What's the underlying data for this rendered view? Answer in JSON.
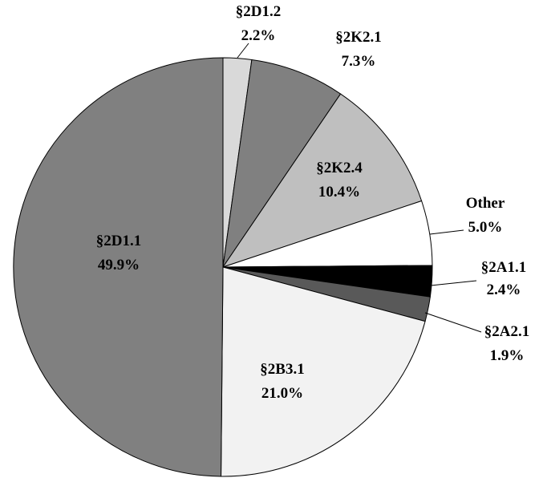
{
  "chart_data": {
    "type": "pie",
    "title": "",
    "slices": [
      {
        "name": "§2D1.2",
        "value": 2.2,
        "label": "2.2%",
        "color": "#d9d9d9"
      },
      {
        "name": "§2K2.1",
        "value": 7.3,
        "label": "7.3%",
        "color": "#808080"
      },
      {
        "name": "§2K2.4",
        "value": 10.4,
        "label": "10.4%",
        "color": "#bfbfbf"
      },
      {
        "name": "Other",
        "value": 5.0,
        "label": "5.0%",
        "color": "#ffffff"
      },
      {
        "name": "§2A1.1",
        "value": 2.4,
        "label": "2.4%",
        "color": "#000000"
      },
      {
        "name": "§2A2.1",
        "value": 1.9,
        "label": "1.9%",
        "color": "#595959"
      },
      {
        "name": "§2B3.1",
        "value": 21.0,
        "label": "21.0%",
        "color": "#f2f2f2"
      },
      {
        "name": "§2D1.1",
        "value": 49.9,
        "label": "49.9%",
        "color": "#808080"
      }
    ],
    "start_angle": "12 o'clock",
    "direction": "clockwise",
    "legend": "none"
  }
}
